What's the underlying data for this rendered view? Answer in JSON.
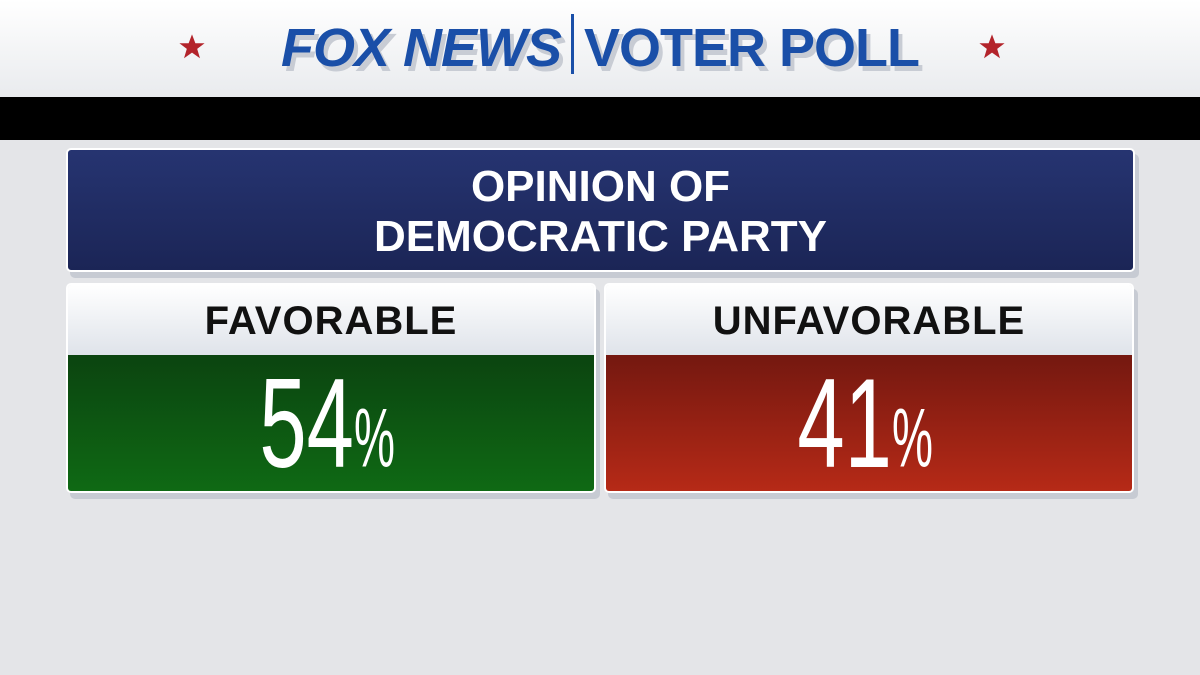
{
  "header": {
    "brand": "FOX NEWS",
    "section": "VOTER POLL"
  },
  "title": {
    "lines": [
      "OPINION OF",
      "DEMOCRATIC PARTY"
    ]
  },
  "cards": [
    {
      "label": "FAVORABLE",
      "value": 54,
      "unit": "%"
    },
    {
      "label": "UNFAVORABLE",
      "value": 41,
      "unit": "%"
    }
  ]
}
